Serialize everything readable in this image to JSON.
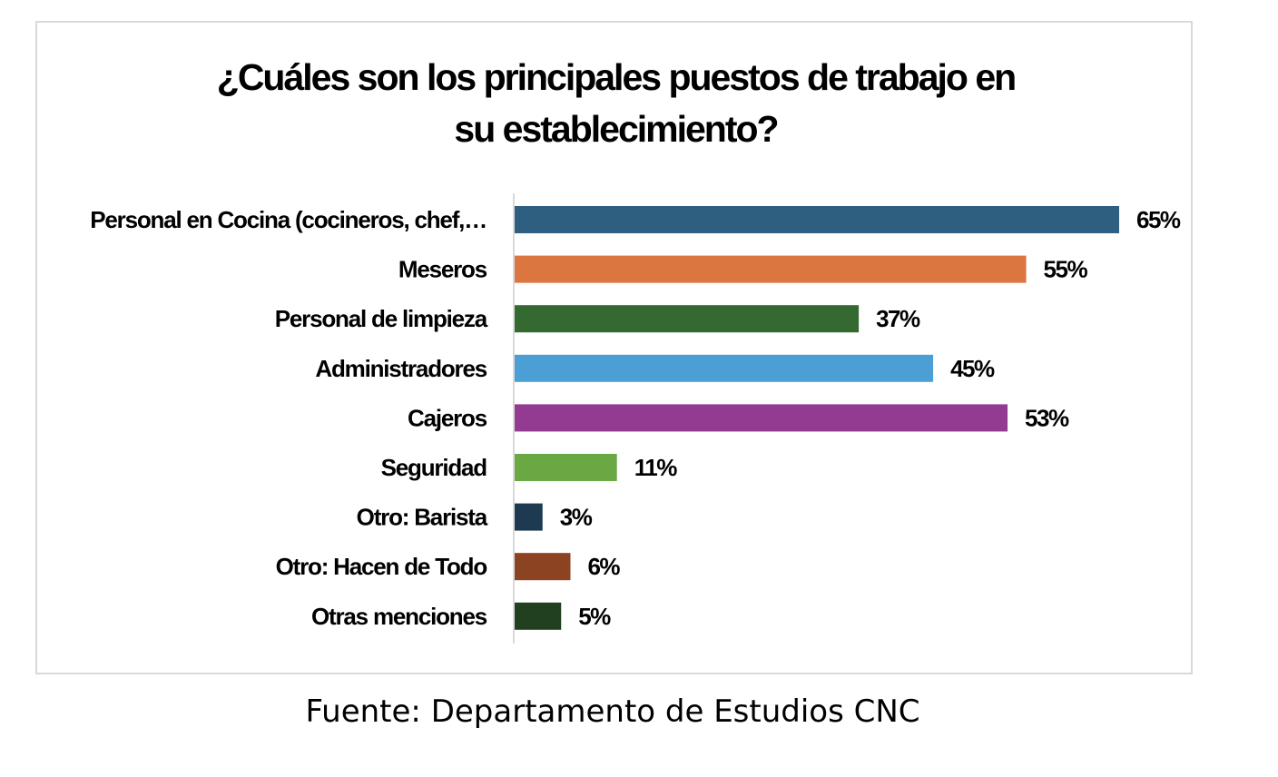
{
  "chart_data": {
    "type": "bar",
    "orientation": "horizontal",
    "title": "¿Cuáles son los principales puestos de trabajo en su establecimiento?",
    "title_lines": [
      "¿Cuáles son los principales puestos de trabajo en",
      "su establecimiento?"
    ],
    "categories": [
      "Personal en Cocina (cocineros, chef,…",
      "Meseros",
      "Personal de limpieza",
      "Administradores",
      "Cajeros",
      "Seguridad",
      "Otro: Barista",
      "Otro: Hacen de Todo",
      "Otras menciones"
    ],
    "values": [
      65,
      55,
      37,
      45,
      53,
      11,
      3,
      6,
      5
    ],
    "value_labels": [
      "65%",
      "55%",
      "37%",
      "45%",
      "53%",
      "11%",
      "3%",
      "6%",
      "5%"
    ],
    "colors": [
      "#2e5f80",
      "#db7640",
      "#346932",
      "#4b9fd5",
      "#933a91",
      "#69a843",
      "#1d3a52",
      "#8b4321",
      "#21401f"
    ],
    "xlabel": "",
    "ylabel": "",
    "xlim": [
      0,
      65
    ],
    "grid": false,
    "legend": "none"
  },
  "source": "Fuente: Departamento de Estudios CNC"
}
